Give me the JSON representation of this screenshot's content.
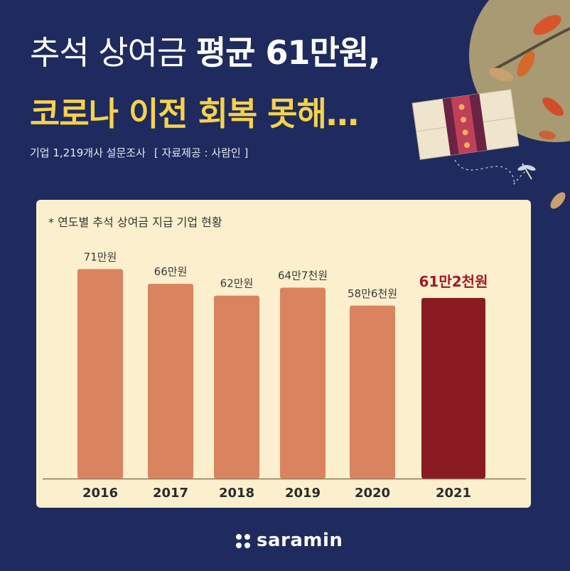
{
  "title": {
    "line1_light": "추석 상여금 ",
    "line1_bold": "평균 61만원,",
    "line2": "코로나 이전 회복 못해…"
  },
  "subtitle": {
    "survey": "기업 1,219개사 설문조사",
    "source": "[ 자료제공 : 사람인 ]"
  },
  "chart_note": "* 연도별 추석 상여금 지급 기업 현황",
  "chart_data": {
    "type": "bar",
    "title": "",
    "xlabel": "",
    "ylabel": "",
    "unit": "만원",
    "categories": [
      "2016",
      "2017",
      "2018",
      "2019",
      "2020",
      "2021"
    ],
    "values": [
      71,
      66,
      62,
      64.7,
      58.6,
      61.2
    ],
    "value_labels": [
      "71만원",
      "66만원",
      "62만원",
      "64만7천원",
      "58만6천원",
      "61만2천원"
    ],
    "highlight_index": 5,
    "ylim": [
      0,
      75
    ],
    "grid": false,
    "legend": "none"
  },
  "colors": {
    "background": "#1f2b5e",
    "panel": "#fbefcd",
    "bar": "#d9835f",
    "bar_highlight": "#8b1b23",
    "highlight_label": "#a01a24",
    "title_white": "#ffffff",
    "title_yellow": "#f6d24c"
  },
  "brand": {
    "name": "saramin",
    "logo_icon": "saramin-dots-icon"
  }
}
